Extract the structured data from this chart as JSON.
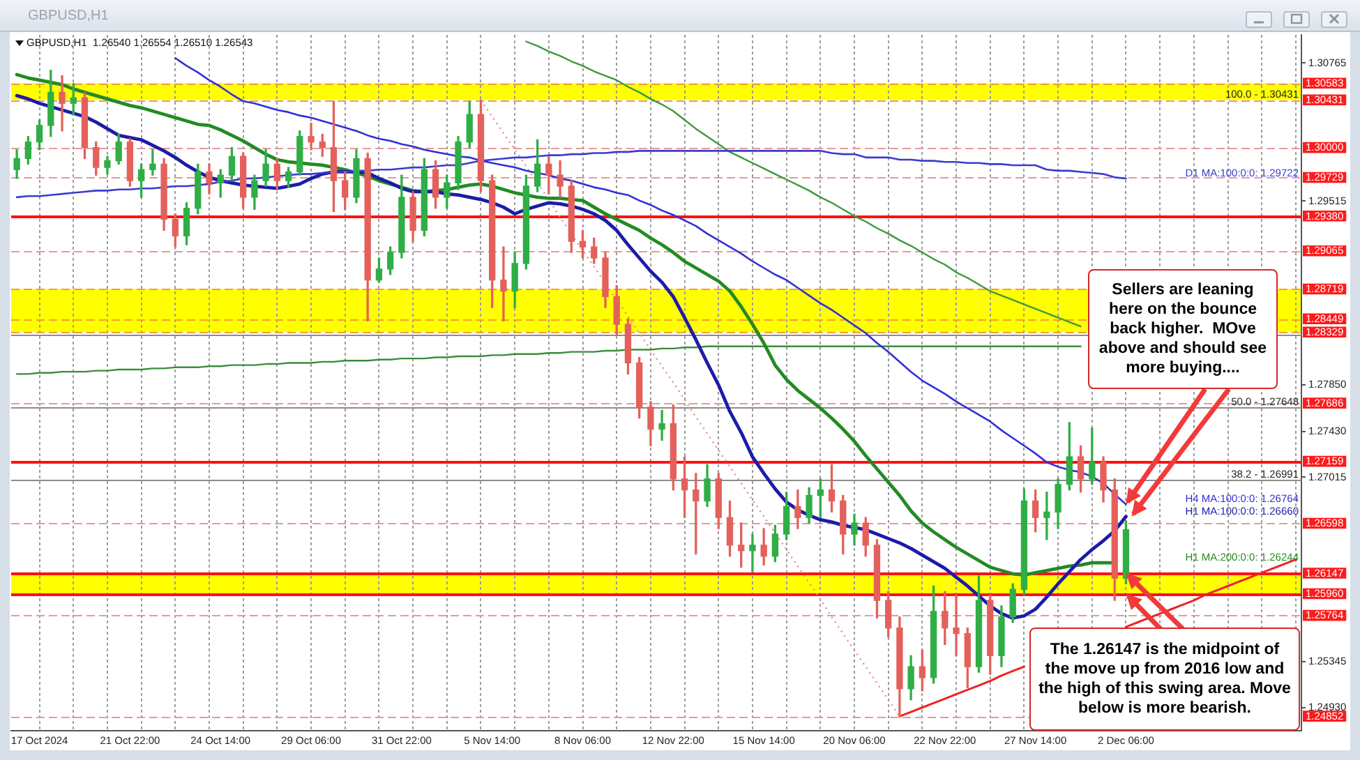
{
  "chart_data": {
    "type": "candlestick",
    "title": "GBPUSD,H1",
    "subtitle": "GBPUSD,H1  1.26540 1.26554 1.26510 1.26543",
    "categories": [
      null,
      null,
      "17 Oct 2024",
      null,
      null,
      null,
      null,
      null,
      null,
      null,
      "21 Oct 22:00",
      null,
      null,
      null,
      null,
      null,
      null,
      null,
      "24 Oct 14:00",
      null,
      null,
      null,
      null,
      null,
      null,
      null,
      "29 Oct 06:00",
      null,
      null,
      null,
      null,
      null,
      null,
      null,
      "31 Oct 22:00",
      null,
      null,
      null,
      null,
      null,
      null,
      null,
      "5 Nov 14:00",
      null,
      null,
      null,
      null,
      null,
      null,
      null,
      "8 Nov 06:00",
      null,
      null,
      null,
      null,
      null,
      null,
      null,
      "12 Nov 22:00",
      null,
      null,
      null,
      null,
      null,
      null,
      null,
      "15 Nov 14:00",
      null,
      null,
      null,
      null,
      null,
      null,
      null,
      "20 Nov 06:00",
      null,
      null,
      null,
      null,
      null,
      null,
      null,
      "22 Nov 22:00",
      null,
      null,
      null,
      null,
      null,
      null,
      null,
      "27 Nov 14:00",
      null,
      null,
      null,
      null,
      null,
      null,
      null,
      "2 Dec 06:00",
      null,
      null,
      null,
      null,
      null,
      null,
      null,
      null,
      null,
      null,
      null,
      null,
      null,
      null,
      null
    ],
    "ohlc": [
      [
        1.298,
        1.2998,
        1.2972,
        1.299
      ],
      [
        1.299,
        1.301,
        1.2985,
        1.3005
      ],
      [
        1.3005,
        1.3025,
        1.2998,
        1.302
      ],
      [
        1.302,
        1.307,
        1.301,
        1.305
      ],
      [
        1.305,
        1.3065,
        1.3015,
        1.304
      ],
      [
        1.304,
        1.3058,
        1.303,
        1.3045
      ],
      [
        1.3045,
        1.305,
        1.299,
        1.3
      ],
      [
        1.3,
        1.3005,
        1.2975,
        1.2982
      ],
      [
        1.2982,
        1.2992,
        1.2976,
        1.2988
      ],
      [
        1.2988,
        1.3012,
        1.2985,
        1.3005
      ],
      [
        1.3005,
        1.3008,
        1.2965,
        1.297
      ],
      [
        1.297,
        1.2985,
        1.2955,
        1.298
      ],
      [
        1.298,
        1.2998,
        1.2975,
        1.2985
      ],
      [
        1.2985,
        1.299,
        1.2925,
        1.2935
      ],
      [
        1.2935,
        1.294,
        1.291,
        1.292
      ],
      [
        1.292,
        1.295,
        1.2912,
        1.2945
      ],
      [
        1.2945,
        1.2985,
        1.294,
        1.2978
      ],
      [
        1.2978,
        1.2985,
        1.2958,
        1.2968
      ],
      [
        1.2968,
        1.298,
        1.2955,
        1.2975
      ],
      [
        1.2975,
        1.3,
        1.297,
        1.2992
      ],
      [
        1.2992,
        1.2995,
        1.2945,
        1.2955
      ],
      [
        1.2955,
        1.2975,
        1.2944,
        1.297
      ],
      [
        1.297,
        1.2998,
        1.2965,
        1.2985
      ],
      [
        1.2985,
        1.299,
        1.2962,
        1.297
      ],
      [
        1.297,
        1.2982,
        1.2964,
        1.2978
      ],
      [
        1.2978,
        1.3015,
        1.2975,
        1.301
      ],
      [
        1.301,
        1.3022,
        1.2998,
        1.3005
      ],
      [
        1.3005,
        1.3012,
        1.2992,
        1.3
      ],
      [
        1.3,
        1.3042,
        1.2942,
        1.297
      ],
      [
        1.297,
        1.2978,
        1.2944,
        1.2955
      ],
      [
        1.2955,
        1.2998,
        1.295,
        1.299
      ],
      [
        1.299,
        1.2995,
        1.2843,
        1.288
      ],
      [
        1.288,
        1.29,
        1.2878,
        1.289
      ],
      [
        1.289,
        1.291,
        1.2885,
        1.2905
      ],
      [
        1.2905,
        1.2975,
        1.29,
        1.2955
      ],
      [
        1.2955,
        1.296,
        1.2915,
        1.2925
      ],
      [
        1.2925,
        1.299,
        1.292,
        1.298
      ],
      [
        1.298,
        1.2988,
        1.2945,
        1.2955
      ],
      [
        1.2955,
        1.2975,
        1.2945,
        1.2968
      ],
      [
        1.2968,
        1.301,
        1.2962,
        1.3005
      ],
      [
        1.3005,
        1.3042,
        1.3,
        1.303
      ],
      [
        1.303,
        1.3043,
        1.296,
        1.297
      ],
      [
        1.297,
        1.2975,
        1.2855,
        1.288
      ],
      [
        1.288,
        1.291,
        1.2843,
        1.287
      ],
      [
        1.287,
        1.2905,
        1.2855,
        1.2895
      ],
      [
        1.2895,
        1.2975,
        1.289,
        1.2965
      ],
      [
        1.2965,
        1.3007,
        1.296,
        1.2985
      ],
      [
        1.2985,
        1.2992,
        1.2958,
        1.2975
      ],
      [
        1.2975,
        1.2988,
        1.2955,
        1.2965
      ],
      [
        1.2965,
        1.297,
        1.2905,
        1.2915
      ],
      [
        1.2915,
        1.2925,
        1.29,
        1.291
      ],
      [
        1.291,
        1.2918,
        1.2895,
        1.29
      ],
      [
        1.29,
        1.2905,
        1.2855,
        1.2865
      ],
      [
        1.2865,
        1.2875,
        1.283,
        1.284
      ],
      [
        1.284,
        1.2845,
        1.2795,
        1.2805
      ],
      [
        1.2805,
        1.281,
        1.2755,
        1.2765
      ],
      [
        1.2765,
        1.277,
        1.273,
        1.2745
      ],
      [
        1.2745,
        1.2762,
        1.2735,
        1.275
      ],
      [
        1.275,
        1.2767,
        1.269,
        1.27
      ],
      [
        1.27,
        1.272,
        1.2665,
        1.269
      ],
      [
        1.269,
        1.2705,
        1.2632,
        1.268
      ],
      [
        1.268,
        1.2713,
        1.2675,
        1.27
      ],
      [
        1.27,
        1.2705,
        1.2655,
        1.2665
      ],
      [
        1.2665,
        1.268,
        1.263,
        1.264
      ],
      [
        1.264,
        1.266,
        1.262,
        1.2635
      ],
      [
        1.2635,
        1.265,
        1.2616,
        1.264
      ],
      [
        1.264,
        1.2655,
        1.2622,
        1.263
      ],
      [
        1.263,
        1.2658,
        1.2625,
        1.265
      ],
      [
        1.265,
        1.2688,
        1.2645,
        1.2675
      ],
      [
        1.2675,
        1.269,
        1.2655,
        1.2665
      ],
      [
        1.2665,
        1.2692,
        1.266,
        1.2685
      ],
      [
        1.2685,
        1.27,
        1.2665,
        1.269
      ],
      [
        1.269,
        1.2713,
        1.267,
        1.268
      ],
      [
        1.268,
        1.2685,
        1.2632,
        1.265
      ],
      [
        1.265,
        1.2668,
        1.264,
        1.266
      ],
      [
        1.266,
        1.2665,
        1.263,
        1.264
      ],
      [
        1.264,
        1.2645,
        1.2574,
        1.259
      ],
      [
        1.259,
        1.2598,
        1.2557,
        1.2565
      ],
      [
        1.2565,
        1.2575,
        1.2485,
        1.251
      ],
      [
        1.251,
        1.254,
        1.25,
        1.253
      ],
      [
        1.253,
        1.2545,
        1.2508,
        1.252
      ],
      [
        1.252,
        1.2603,
        1.2515,
        1.258
      ],
      [
        1.258,
        1.2598,
        1.255,
        1.2565
      ],
      [
        1.2565,
        1.2595,
        1.254,
        1.256
      ],
      [
        1.256,
        1.2565,
        1.2511,
        1.253
      ],
      [
        1.253,
        1.2612,
        1.2525,
        1.259
      ],
      [
        1.259,
        1.2595,
        1.2523,
        1.254
      ],
      [
        1.254,
        1.2585,
        1.253,
        1.2575
      ],
      [
        1.2575,
        1.2605,
        1.257,
        1.26
      ],
      [
        1.26,
        1.2691,
        1.2595,
        1.268
      ],
      [
        1.268,
        1.269,
        1.2652,
        1.2665
      ],
      [
        1.2665,
        1.2688,
        1.2645,
        1.267
      ],
      [
        1.267,
        1.27,
        1.2655,
        1.2695
      ],
      [
        1.2695,
        1.2751,
        1.269,
        1.272
      ],
      [
        1.272,
        1.273,
        1.2688,
        1.27
      ],
      [
        1.27,
        1.2746,
        1.2695,
        1.2715
      ],
      [
        1.2715,
        1.272,
        1.2679,
        1.269
      ],
      [
        1.269,
        1.27,
        1.259,
        1.261
      ],
      [
        1.261,
        1.2662,
        1.2605,
        1.2654
      ],
      null,
      null,
      null,
      null,
      null,
      null,
      null,
      null,
      null,
      null,
      null,
      null,
      null,
      null,
      null
    ],
    "series": [
      {
        "type": "line",
        "name": "D1 MA:100:0:0: 1.29722",
        "color": "#3b3bd0",
        "values": [
          1.2955,
          1.2956,
          1.2956,
          1.2957,
          1.2958,
          1.2959,
          1.296,
          1.2961,
          1.2961,
          1.2962,
          1.2962,
          1.2963,
          1.2963,
          1.2964,
          1.2965,
          1.2965,
          1.2966,
          1.2967,
          1.2969,
          1.297,
          1.2972,
          1.2972,
          1.2973,
          1.2974,
          1.2975,
          1.2976,
          1.2976,
          1.2977,
          1.2978,
          1.2978,
          1.2979,
          1.2979,
          1.298,
          1.298,
          1.2981,
          1.2982,
          1.2982,
          1.2983,
          1.2984,
          1.2984,
          1.2986,
          1.2988,
          1.2989,
          1.299,
          1.2991,
          1.2991,
          1.2992,
          1.2993,
          1.2993,
          1.2994,
          1.2994,
          1.2995,
          1.2995,
          1.2996,
          1.2996,
          1.2997,
          1.2997,
          1.2997,
          1.2997,
          1.2997,
          1.2997,
          1.2997,
          1.2997,
          1.2997,
          1.2997,
          1.2997,
          1.2997,
          1.2997,
          1.2997,
          1.2997,
          1.2997,
          1.2997,
          1.2995,
          1.2994,
          1.2994,
          1.2991,
          1.2991,
          1.2991,
          1.2989,
          1.2989,
          1.2988,
          1.2988,
          1.2987,
          1.2987,
          1.2986,
          1.2986,
          1.2985,
          1.2985,
          1.2984,
          1.2984,
          1.2984,
          1.298,
          1.2979,
          1.2979,
          1.2978,
          1.2977,
          1.2976,
          1.2973,
          1.2972,
          null,
          null,
          null,
          null,
          null,
          null,
          null,
          null,
          null,
          null,
          null,
          null,
          null,
          null,
          null
        ]
      },
      {
        "type": "line",
        "name": "H4 MA:100:0:0: 1.26764",
        "color": "#3030d8",
        "values": [
          null,
          null,
          null,
          null,
          null,
          null,
          null,
          null,
          null,
          null,
          null,
          null,
          null,
          null,
          1.3081,
          1.3074,
          1.3068,
          1.3061,
          1.3055,
          1.3048,
          1.3042,
          1.304,
          1.3037,
          1.3034,
          1.3032,
          1.3029,
          1.3027,
          1.3024,
          1.3021,
          1.3018,
          1.3015,
          1.3011,
          1.3008,
          1.3006,
          1.3003,
          1.3001,
          1.2998,
          1.2996,
          1.2994,
          1.2992,
          1.2991,
          1.2988,
          1.2986,
          1.2984,
          1.2982,
          1.2979,
          1.2977,
          1.2975,
          1.2972,
          1.297,
          1.2967,
          1.2964,
          1.2962,
          1.2959,
          1.2957,
          1.2952,
          1.2948,
          1.2943,
          1.2939,
          1.2934,
          1.2929,
          1.2922,
          1.2916,
          1.291,
          1.2904,
          1.2897,
          1.2891,
          1.2885,
          1.288,
          1.2873,
          1.2866,
          1.2859,
          1.2853,
          1.2846,
          1.2839,
          1.2832,
          1.2823,
          1.2815,
          1.2806,
          1.2797,
          1.2789,
          1.2783,
          1.2777,
          1.277,
          1.2764,
          1.2758,
          1.2752,
          1.2744,
          1.2737,
          1.273,
          1.2723,
          1.2715,
          1.2711,
          1.2708,
          1.2706,
          1.2702,
          1.2696,
          1.2686,
          1.2677,
          null,
          null,
          null,
          null,
          null,
          null,
          null,
          null,
          null,
          null,
          null,
          null,
          null,
          null,
          null
        ]
      },
      {
        "type": "line",
        "name": "H1 MA:100:0:0: 1.26660",
        "color": "#1c1ca8",
        "values": [
          1.3047,
          1.3044,
          1.304,
          1.3037,
          1.3034,
          1.3031,
          1.3028,
          1.3023,
          1.3017,
          1.3011,
          1.3009,
          1.3007,
          1.3002,
          1.2997,
          1.2991,
          1.2984,
          1.2978,
          1.2973,
          1.297,
          1.2968,
          1.2966,
          1.2965,
          1.2964,
          1.2963,
          1.2965,
          1.2967,
          1.2972,
          1.2976,
          1.2978,
          1.2978,
          1.2978,
          1.2977,
          1.2972,
          1.2968,
          1.2963,
          1.296,
          1.296,
          1.296,
          1.2958,
          1.2957,
          1.2955,
          1.2953,
          1.295,
          1.2946,
          1.294,
          1.2944,
          1.2947,
          1.295,
          1.2949,
          1.2947,
          1.2944,
          1.294,
          1.2934,
          1.2925,
          1.2912,
          1.29,
          1.2888,
          1.2878,
          1.2865,
          1.2846,
          1.2826,
          1.2805,
          1.2785,
          1.2761,
          1.2742,
          1.272,
          1.2705,
          1.2691,
          1.2679,
          1.2672,
          1.2667,
          1.2663,
          1.2661,
          1.2658,
          1.2656,
          1.2654,
          1.265,
          1.2646,
          1.2642,
          1.2637,
          1.2631,
          1.2625,
          1.2619,
          1.2611,
          1.2603,
          1.2594,
          1.2585,
          1.2578,
          1.2574,
          1.2576,
          1.2582,
          1.2593,
          1.2605,
          1.2616,
          1.2627,
          1.2636,
          1.2644,
          1.2653,
          1.2666,
          null,
          null,
          null,
          null,
          null,
          null,
          null,
          null,
          null,
          null,
          null,
          null,
          null,
          null,
          null
        ]
      },
      {
        "type": "line",
        "name": "H1 MA:200:0:0: 1.26244",
        "color": "#238b23",
        "values": [
          1.3066,
          1.3063,
          1.3061,
          1.3059,
          1.3057,
          1.3053,
          1.305,
          1.3047,
          1.3044,
          1.3041,
          1.3038,
          1.3036,
          1.3033,
          1.303,
          1.3027,
          1.3024,
          1.3021,
          1.302,
          1.3016,
          1.3011,
          1.3006,
          1.3,
          1.2994,
          1.2989,
          1.2987,
          1.2986,
          1.2985,
          1.2984,
          1.2982,
          1.298,
          1.2977,
          1.2974,
          1.297,
          1.2967,
          1.2964,
          1.2961,
          1.296,
          1.2961,
          1.2962,
          1.2964,
          1.2966,
          1.2967,
          1.2965,
          1.2962,
          1.2959,
          1.2957,
          1.2955,
          1.2954,
          1.2954,
          1.2953,
          1.2952,
          1.2946,
          1.294,
          1.2935,
          1.293,
          1.2925,
          1.2918,
          1.2912,
          1.2905,
          1.2897,
          1.2891,
          1.2885,
          1.2879,
          1.287,
          1.2856,
          1.284,
          1.2823,
          1.2803,
          1.279,
          1.278,
          1.2772,
          1.2764,
          1.2755,
          1.2745,
          1.2734,
          1.2721,
          1.2709,
          1.2697,
          1.2685,
          1.2671,
          1.266,
          1.2652,
          1.2645,
          1.2638,
          1.2632,
          1.2626,
          1.262,
          1.2617,
          1.2614,
          1.2613,
          1.2615,
          1.2617,
          1.2619,
          1.2621,
          1.2622,
          1.2624,
          1.2624,
          1.2624,
          null,
          null,
          null,
          null,
          null,
          null,
          null,
          null,
          null,
          null,
          null,
          null,
          null,
          null,
          null,
          null
        ]
      },
      {
        "type": "line",
        "color": "#3c9a3c",
        "values": [
          null,
          null,
          null,
          null,
          null,
          null,
          null,
          null,
          null,
          null,
          null,
          null,
          null,
          null,
          null,
          null,
          null,
          null,
          null,
          null,
          null,
          null,
          null,
          null,
          null,
          null,
          null,
          null,
          null,
          null,
          null,
          null,
          null,
          null,
          null,
          null,
          null,
          null,
          null,
          null,
          null,
          null,
          null,
          null,
          null,
          1.3096,
          1.3092,
          1.3087,
          1.3083,
          1.3078,
          1.3074,
          1.3069,
          1.3065,
          1.3061,
          1.3055,
          1.305,
          1.3044,
          1.3039,
          1.3033,
          1.3025,
          1.3017,
          1.301,
          1.3003,
          1.2996,
          1.2991,
          1.2986,
          1.2981,
          1.2976,
          1.2971,
          1.2966,
          1.2961,
          1.2955,
          1.295,
          1.2944,
          1.2938,
          1.2933,
          1.2927,
          1.2922,
          1.2916,
          1.2911,
          1.2905,
          1.2899,
          1.2894,
          1.2887,
          1.2882,
          1.2876,
          1.287,
          1.2866,
          1.2862,
          1.2858,
          1.2854,
          1.285,
          1.2846,
          1.2842,
          1.2838,
          null,
          null,
          null,
          null,
          null,
          null,
          null,
          null,
          null,
          null,
          null,
          null,
          null,
          null,
          null,
          null,
          null,
          null,
          null
        ]
      },
      {
        "type": "line",
        "color": "#3c8c3c",
        "values": [
          1.2795,
          1.2795,
          1.2796,
          1.2796,
          1.2797,
          1.2797,
          1.2797,
          1.2798,
          1.2798,
          1.2799,
          1.2799,
          1.2799,
          1.28,
          1.28,
          1.2801,
          1.2801,
          1.2801,
          1.2802,
          1.2802,
          1.2803,
          1.2803,
          1.2803,
          1.2804,
          1.2804,
          1.2805,
          1.2805,
          1.2805,
          1.2806,
          1.2806,
          1.2807,
          1.2807,
          1.2807,
          1.2808,
          1.2808,
          1.2809,
          1.2809,
          1.2809,
          1.281,
          1.281,
          1.2811,
          1.2811,
          1.2811,
          1.2812,
          1.2812,
          1.2813,
          1.2813,
          1.2813,
          1.2814,
          1.2814,
          1.2815,
          1.2815,
          1.2815,
          1.2816,
          1.2816,
          1.2817,
          1.2817,
          1.2817,
          1.2818,
          1.2818,
          1.2819,
          1.2819,
          1.282,
          1.282,
          1.282,
          1.282,
          1.282,
          1.282,
          1.282,
          1.282,
          1.282,
          1.282,
          1.282,
          1.282,
          1.282,
          1.282,
          1.282,
          1.282,
          1.282,
          1.282,
          1.282,
          1.282,
          1.282,
          1.282,
          1.282,
          1.282,
          1.282,
          1.282,
          1.282,
          1.282,
          1.282,
          1.282,
          1.282,
          1.282,
          1.282,
          1.282,
          null,
          null,
          null,
          null,
          null,
          null,
          null,
          null,
          null,
          null,
          null,
          null,
          null,
          null,
          null,
          null,
          null,
          null,
          null
        ]
      },
      {
        "type": "line",
        "color": "#e88888",
        "line_style": "dotted",
        "values": [
          null,
          null,
          null,
          null,
          null,
          null,
          null,
          null,
          null,
          null,
          null,
          null,
          null,
          null,
          null,
          null,
          null,
          null,
          null,
          null,
          null,
          null,
          null,
          null,
          null,
          null,
          null,
          null,
          null,
          null,
          null,
          null,
          null,
          null,
          null,
          null,
          null,
          null,
          null,
          null,
          null,
          1.3043,
          1.3028,
          1.3013,
          1.2998,
          1.2983,
          1.2968,
          1.2953,
          1.2937,
          1.2922,
          1.2907,
          1.2892,
          1.2877,
          1.2862,
          1.2847,
          1.2832,
          1.2817,
          1.2802,
          1.2787,
          1.2772,
          1.2756,
          1.2741,
          1.2726,
          1.2711,
          1.2696,
          1.2681,
          1.2666,
          1.2651,
          1.2636,
          1.2621,
          1.2606,
          1.2591,
          1.2575,
          1.256,
          1.2545,
          1.253,
          1.2515,
          1.25,
          1.2485,
          null,
          null,
          null,
          null,
          null,
          null,
          null,
          null,
          null,
          null,
          null,
          null,
          null,
          null,
          null,
          null,
          null,
          null,
          null,
          null,
          null,
          null,
          null,
          null,
          null,
          null,
          null,
          null,
          null,
          null,
          null,
          null,
          null,
          null,
          null
        ]
      },
      {
        "type": "line",
        "color": "#ee2222",
        "values": [
          null,
          null,
          null,
          null,
          null,
          null,
          null,
          null,
          null,
          null,
          null,
          null,
          null,
          null,
          null,
          null,
          null,
          null,
          null,
          null,
          null,
          null,
          null,
          null,
          null,
          null,
          null,
          null,
          null,
          null,
          null,
          null,
          null,
          null,
          null,
          null,
          null,
          null,
          null,
          null,
          null,
          null,
          null,
          null,
          null,
          null,
          null,
          null,
          null,
          null,
          null,
          null,
          null,
          null,
          null,
          null,
          null,
          null,
          null,
          null,
          null,
          null,
          null,
          null,
          null,
          null,
          null,
          null,
          null,
          null,
          null,
          null,
          null,
          null,
          null,
          null,
          null,
          null,
          1.2485,
          1.2489,
          1.2493,
          1.2497,
          1.2501,
          1.2505,
          1.2509,
          1.2513,
          1.2517,
          1.2522,
          1.2526,
          1.253,
          null,
          null,
          null,
          null,
          null,
          null,
          null,
          null,
          1.2566,
          1.257,
          1.2574,
          1.2578,
          1.2582,
          1.2586,
          1.259,
          1.2595,
          1.2599,
          1.2603,
          1.2607,
          1.2611,
          1.2615,
          1.2619,
          1.2623,
          1.2627
        ]
      }
    ],
    "ylim": [
      1.2472,
      1.3102
    ],
    "yticks": [
      {
        "value": 1.2493,
        "label": "1.24930"
      },
      1.25345,
      1.27015,
      {
        "value": 1.2743,
        "label": "1.27430"
      },
      {
        "value": 1.2785,
        "label": "1.27850"
      },
      1.29515,
      1.30765
    ],
    "grid": "x",
    "bands": [
      {
        "axis": "y",
        "from": 1.30431,
        "to": 1.30583,
        "color": "#ffff00"
      },
      {
        "axis": "y",
        "from": 1.28329,
        "to": 1.28719,
        "color": "#ffff00"
      },
      {
        "axis": "y",
        "from": 1.2596,
        "to": 1.26147,
        "color": "#ffff00"
      }
    ],
    "ref_lines": [
      {
        "axis": "y",
        "value": 1.30583,
        "label": "1.30583",
        "color": "#f0a030",
        "line_style": "dashed"
      },
      {
        "axis": "y",
        "value": 1.30431,
        "label": "1.30431",
        "color": "#f0a030",
        "line_style": "dashed"
      },
      {
        "axis": "y",
        "value": 1.3,
        "label": "1.30000",
        "color": "#e59a9a",
        "line_style": "dashed"
      },
      {
        "axis": "y",
        "value": 1.29729,
        "label": "1.29729",
        "color": "#e59a9a",
        "line_style": "dashed"
      },
      {
        "axis": "y",
        "value": 1.2938,
        "label": "1.29380",
        "color": "#ff1010",
        "line_style": "solid"
      },
      {
        "axis": "y",
        "value": 1.29065,
        "label": "1.29065",
        "color": "#e59a9a",
        "line_style": "dashed"
      },
      {
        "axis": "y",
        "value": 1.28719,
        "label": "1.28719",
        "color": "#f0a030",
        "line_style": "dashed"
      },
      {
        "axis": "y",
        "value": 1.28449,
        "label": "1.28449",
        "color": "#f0a030",
        "line_style": "dashed"
      },
      {
        "axis": "y",
        "value": 1.28329,
        "label": "1.28329",
        "color": "#f0a030",
        "line_style": "dashed"
      },
      {
        "axis": "y",
        "value": 1.28305,
        "color": "#8c8c8c",
        "line_style": "solid"
      },
      {
        "axis": "y",
        "value": 1.27686,
        "label": "1.27686",
        "color": "#e59a9a",
        "line_style": "dashed"
      },
      {
        "axis": "y",
        "value": 1.27648,
        "color": "#8c8c8c",
        "line_style": "solid"
      },
      {
        "axis": "y",
        "value": 1.27159,
        "label": "1.27159",
        "color": "#ff1010",
        "line_style": "solid"
      },
      {
        "axis": "y",
        "value": 1.26991,
        "color": "#8c8c8c",
        "line_style": "solid"
      },
      {
        "axis": "y",
        "value": 1.26598,
        "label": "1.26598",
        "color": "#e59a9a",
        "line_style": "dashed"
      },
      {
        "axis": "y",
        "value": 1.26147,
        "label": "1.26147",
        "color": "#ff1010",
        "line_style": "solid"
      },
      {
        "axis": "y",
        "value": 1.2596,
        "label": "1.25960",
        "color": "#ff1010",
        "line_style": "solid"
      },
      {
        "axis": "y",
        "value": 1.25764,
        "label": "1.25764",
        "color": "#e59a9a",
        "line_style": "dashed"
      },
      {
        "axis": "y",
        "value": 1.24852,
        "label": "1.24852",
        "color": "#e59a9a",
        "line_style": "dashed"
      }
    ],
    "annotations": [
      {
        "text": "Sellers are leaning here on the bounce back higher.  MOve above and should see more buying....",
        "x": "2 Dec 06:00",
        "y": 1.2677
      },
      {
        "text": "The 1.26147 is the midpoint of the move up from 2016 low and the high of this swing area. Move below is more bearish.",
        "x": "2 Dec 06:00",
        "y": 1.26147
      },
      {
        "text": "100.0 - 1.30431",
        "y": 1.30431
      },
      {
        "text": "50.0 - 1.27648",
        "y": 1.27648
      },
      {
        "text": "38.2 - 1.26991",
        "y": 1.26991
      }
    ]
  }
}
